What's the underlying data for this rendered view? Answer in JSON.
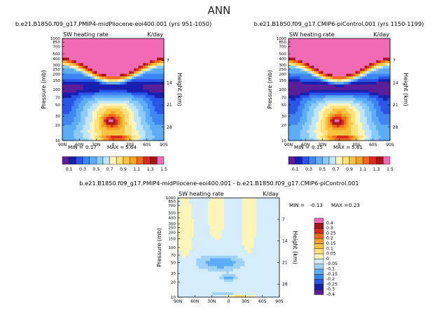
{
  "page_title": "ANN",
  "chart_data": [
    {
      "type": "heatmap",
      "title": "b.e21.B1850.f09_g17.PMIP4-midPliocene-eoi400.001 (yrs 951-1050)",
      "subtitle_left": "SW heating rate",
      "subtitle_right": "K/day",
      "xlabel": "",
      "ylabel": "Pressure (mb)",
      "ylabel_right": "Height (km)",
      "x_ticks": [
        "90N",
        "60N",
        "30N",
        "0",
        "30S",
        "60S",
        "90S"
      ],
      "y_ticks": [
        "10",
        "20",
        "30",
        "50",
        "70",
        "100",
        "150",
        "200",
        "250",
        "300",
        "400",
        "500",
        "700",
        "850",
        "1000"
      ],
      "height_ticks": [
        "35",
        "28",
        "21",
        "14",
        "7"
      ],
      "min_label": "MIN =",
      "min_value": "0.17",
      "max_label": "MAX =",
      "max_value": "5.64",
      "levels": [
        0.1,
        0.2,
        0.3,
        0.4,
        0.5,
        0.6,
        0.7,
        0.8,
        0.9,
        1.0,
        1.1,
        1.2,
        1.3,
        1.4,
        1.5
      ],
      "colorbar_labels": [
        "0.1",
        "0.3",
        "0.5",
        "0.7",
        "0.9",
        "1.1",
        "1.3",
        "1.5"
      ]
    },
    {
      "type": "heatmap",
      "title": "b.e21.B1850.f09_g17.CMIP6-piControl.001 (yrs 1150-1199)",
      "subtitle_left": "SW heating rate",
      "subtitle_right": "K/day",
      "xlabel": "",
      "ylabel": "Pressure (mb)",
      "ylabel_right": "Height (km)",
      "x_ticks": [
        "90N",
        "60N",
        "30N",
        "0",
        "30S",
        "60S",
        "90S"
      ],
      "y_ticks": [
        "10",
        "20",
        "30",
        "50",
        "70",
        "100",
        "150",
        "200",
        "250",
        "300",
        "400",
        "500",
        "700",
        "850",
        "1000"
      ],
      "height_ticks": [
        "35",
        "28",
        "21",
        "14",
        "7"
      ],
      "min_label": "MIN =",
      "min_value": "0.15",
      "max_label": "MAX =",
      "max_value": "5.61",
      "levels": [
        0.1,
        0.2,
        0.3,
        0.4,
        0.5,
        0.6,
        0.7,
        0.8,
        0.9,
        1.0,
        1.1,
        1.2,
        1.3,
        1.4,
        1.5
      ],
      "colorbar_labels": [
        "0.1",
        "0.3",
        "0.5",
        "0.7",
        "0.9",
        "1.1",
        "1.3",
        "1.5"
      ]
    },
    {
      "type": "heatmap",
      "title": "b.e21.B1850.f09_g17.PMIP4-midPliocene-eoi400.001  -  b.e21.B1850.f09_g17.CMIP6-piControl.001",
      "subtitle_left": "SW heating rate",
      "subtitle_right": "K/day",
      "xlabel": "",
      "ylabel": "Pressure (mb)",
      "ylabel_right": "Height (km)",
      "x_ticks": [
        "90N",
        "60N",
        "30N",
        "0",
        "30S",
        "60S",
        "90S"
      ],
      "y_ticks": [
        "10",
        "20",
        "30",
        "50",
        "70",
        "100",
        "150",
        "200",
        "250",
        "300",
        "400",
        "500",
        "700",
        "850",
        "1000"
      ],
      "height_ticks": [
        "35",
        "28",
        "21",
        "14",
        "7"
      ],
      "min_label": "MIN =",
      "min_value": "-0.13",
      "max_label": "MAX =",
      "max_value": "0.23",
      "levels": [
        -0.4,
        -0.3,
        -0.25,
        -0.2,
        -0.15,
        -0.1,
        -0.05,
        0,
        0.05,
        0.1,
        0.15,
        0.2,
        0.25,
        0.3,
        0.4
      ],
      "colorbar_labels": [
        "0.4",
        "0.3",
        "0.25",
        "0.2",
        "0.15",
        "0.1",
        "0.05",
        "0",
        "-0.05",
        "-0.1",
        "-0.15",
        "-0.2",
        "-0.25",
        "-0.3",
        "-0.4"
      ]
    }
  ],
  "colors": {
    "abs_scale": [
      "#5b1e9a",
      "#1b1fb0",
      "#2a55e8",
      "#3f86f5",
      "#5dacf7",
      "#8bcaf9",
      "#bfe6fb",
      "#fdf4b8",
      "#fde27a",
      "#fbc33e",
      "#f7a126",
      "#ef6a1d",
      "#d92a1d",
      "#a8141c",
      "#f06bb4"
    ],
    "diff_scale": [
      "#f06bb4",
      "#a8141c",
      "#d92a1d",
      "#ef6a1d",
      "#f7a126",
      "#fbc33e",
      "#fde27a",
      "#fdf4b8",
      "#d4ecfb",
      "#9fd2f9",
      "#5dacf7",
      "#3f86f5",
      "#2a55e8",
      "#1b1fb0",
      "#5b1e9a"
    ]
  }
}
